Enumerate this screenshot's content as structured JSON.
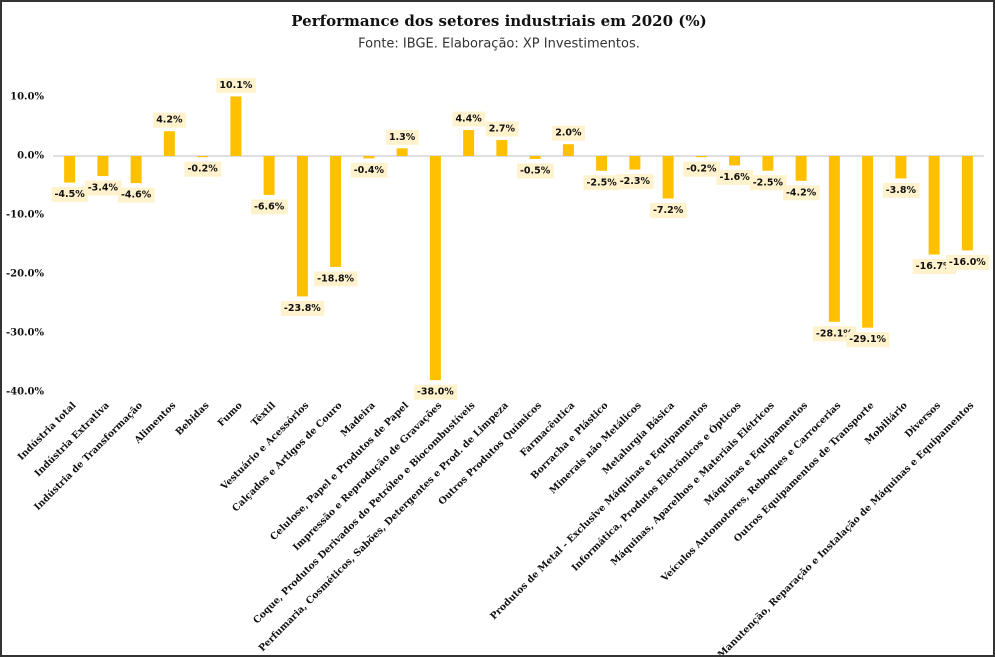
{
  "chart_data": {
    "type": "bar",
    "title": "Performance dos setores industriais em 2020 (%)",
    "subtitle": "Fonte: IBGE. Elaboração: XP Investimentos.",
    "categories": [
      "Indústria total",
      "Indústria Extrativa",
      "Indústria de Transformação",
      "Alimentos",
      "Bebidas",
      "Fumo",
      "Têxtil",
      "Vestuário e Acessórios",
      "Calçados e Artigos de Couro",
      "Madeira",
      "Celulose, Papel e Produtos de Papel",
      "Impressão e Reprodução de Gravações",
      "Coque, Produtos Derivados do Petróleo e Biocombustíveis",
      "Perfumaria, Cosméticos, Sabões, Detergentes e Prod. de Limpeza",
      "Outros Produtos Químicos",
      "Farmacêutica",
      "Borracha e Plástico",
      "Minerais não Metálicos",
      "Metalurgia Básica",
      "Produtos de Metal - Exclusive Máquinas e Equipamentos",
      "Informática, Produtos Eletrônicos e Ópticos",
      "Máquinas, Aparelhos e Materiais Elétricos",
      "Máquinas e Equipamentos",
      "Veículos Automotores, Reboques e Carrocerias",
      "Outros Equipamentos de Transporte",
      "Mobiliário",
      "Diversos",
      "Manutenção, Reparação e Instalação de Máquinas e Equipamentos"
    ],
    "values": [
      -4.5,
      -3.4,
      -4.6,
      4.2,
      -0.2,
      10.1,
      -6.6,
      -23.8,
      -18.8,
      -0.4,
      1.3,
      -38.0,
      4.4,
      2.7,
      -0.5,
      2.0,
      -2.5,
      -2.3,
      -7.2,
      -0.2,
      -1.6,
      -2.5,
      -4.2,
      -28.1,
      -29.1,
      -3.8,
      -16.7,
      -16.0
    ],
    "value_labels": [
      "-4.5%",
      "-3.4%",
      "-4.6%",
      "4.2%",
      "-0.2%",
      "10.1%",
      "-6.6%",
      "-23.8%",
      "-18.8%",
      "-0.4%",
      "1.3%",
      "-38.0%",
      "4.4%",
      "2.7%",
      "-0.5%",
      "2.0%",
      "-2.5%",
      "-2.3%",
      "-7.2%",
      "-0.2%",
      "-1.6%",
      "-2.5%",
      "-4.2%",
      "-28.1%",
      "-29.1%",
      "-3.8%",
      "-16.7%",
      "-16.0%"
    ],
    "color": "#ffc000",
    "label_background": "#fff2cc",
    "ylim": [
      -40,
      10
    ],
    "yticks": [
      {
        "value": -40,
        "label": "-40.0%"
      },
      {
        "value": -30,
        "label": "-30.0%"
      },
      {
        "value": -20,
        "label": "-20.0%"
      },
      {
        "value": -10,
        "label": "-10.0%"
      },
      {
        "value": 0,
        "label": "0.0%"
      },
      {
        "value": 10,
        "label": "10.0%"
      }
    ],
    "grid": false
  }
}
